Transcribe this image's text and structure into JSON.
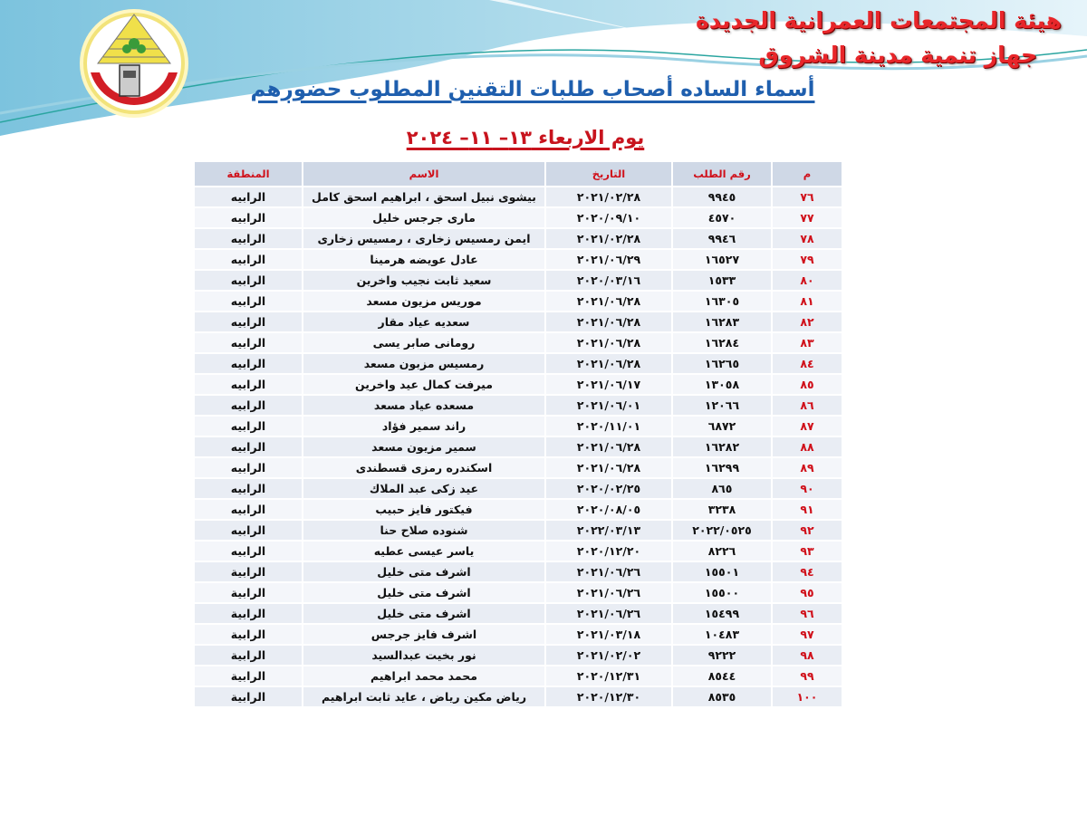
{
  "header": {
    "org_line1": "هيئة المجتمعات العمرانية الجديدة",
    "org_line2": "جهاز تنمية مدينة الشروق",
    "title": "أسماء الساده أصحاب طلبات التقنين المطلوب حضورهم",
    "subtitle": "يوم الاربعاء ١٣– ١١– ٢٠٢٤"
  },
  "colors": {
    "accent_red": "#d0101a",
    "title_blue": "#1f5fae",
    "header_row": "#cfd8e6"
  },
  "table": {
    "columns": [
      "م",
      "رقم الطلب",
      "التاريخ",
      "الاسم",
      "المنطقة"
    ],
    "rows": [
      [
        "٧٦",
        "٩٩٤٥",
        "٢٠٢١/٠٢/٢٨",
        "بيشوى نبيل اسحق ، ابراهيم اسحق كامل",
        "الرابيه"
      ],
      [
        "٧٧",
        "٤٥٧٠",
        "٢٠٢٠/٠٩/١٠",
        "مارى جرجس خليل",
        "الرابيه"
      ],
      [
        "٧٨",
        "٩٩٤٦",
        "٢٠٢١/٠٢/٢٨",
        "ايمن رمسيس زخارى ، رمسيس زخارى",
        "الرابيه"
      ],
      [
        "٧٩",
        "١٦٥٢٧",
        "٢٠٢١/٠٦/٢٩",
        "عادل عويضه هرمينا",
        "الرابيه"
      ],
      [
        "٨٠",
        "١٥٣٣",
        "٢٠٢٠/٠٣/١٦",
        "سعيد ثابت نجيب واخرين",
        "الرابيه"
      ],
      [
        "٨١",
        "١٦٣٠٥",
        "٢٠٢١/٠٦/٢٨",
        "موريس مزيون مسعد",
        "الرابيه"
      ],
      [
        "٨٢",
        "١٦٢٨٣",
        "٢٠٢١/٠٦/٢٨",
        "سعديه عياد مقار",
        "الرابيه"
      ],
      [
        "٨٣",
        "١٦٢٨٤",
        "٢٠٢١/٠٦/٢٨",
        "رومانى صابر يسى",
        "الرابيه"
      ],
      [
        "٨٤",
        "١٦٢٦٥",
        "٢٠٢١/٠٦/٢٨",
        "رمسيس مزبون مسعد",
        "الرابيه"
      ],
      [
        "٨٥",
        "١٣٠٥٨",
        "٢٠٢١/٠٦/١٧",
        "ميرفت كمال عيد واخرين",
        "الرابيه"
      ],
      [
        "٨٦",
        "١٢٠٦٦",
        "٢٠٢١/٠٦/٠١",
        "مسعده عياد مسعد",
        "الرابيه"
      ],
      [
        "٨٧",
        "٦٨٧٢",
        "٢٠٢٠/١١/٠١",
        "راند سمير فؤاد",
        "الرابيه"
      ],
      [
        "٨٨",
        "١٦٢٨٢",
        "٢٠٢١/٠٦/٢٨",
        "سمير مزيون مسعد",
        "الرابيه"
      ],
      [
        "٨٩",
        "١٦٢٩٩",
        "٢٠٢١/٠٦/٢٨",
        "اسكندره رمزى قسطندى",
        "الرابيه"
      ],
      [
        "٩٠",
        "٨٦٥",
        "٢٠٢٠/٠٢/٢٥",
        "عيد زكى عبد الملاك",
        "الرابيه"
      ],
      [
        "٩١",
        "٣٢٣٨",
        "٢٠٢٠/٠٨/٠٥",
        "فيكتور فايز حبيب",
        "الرابيه"
      ],
      [
        "٩٢",
        "٢٠٢٢/٠٥٢٥",
        "٢٠٢٢/٠٣/١٣",
        "شنوده صلاح حنا",
        "الرابيه"
      ],
      [
        "٩٣",
        "٨٢٢٦",
        "٢٠٢٠/١٢/٢٠",
        "ياسر عيسى عطيه",
        "الرابيه"
      ],
      [
        "٩٤",
        "١٥٥٠١",
        "٢٠٢١/٠٦/٢٦",
        "اشرف متى خليل",
        "الرابية"
      ],
      [
        "٩٥",
        "١٥٥٠٠",
        "٢٠٢١/٠٦/٢٦",
        "اشرف متى خليل",
        "الرابية"
      ],
      [
        "٩٦",
        "١٥٤٩٩",
        "٢٠٢١/٠٦/٢٦",
        "اشرف متى خليل",
        "الرابية"
      ],
      [
        "٩٧",
        "١٠٤٨٣",
        "٢٠٢١/٠٣/١٨",
        "اشرف فايز جرجس",
        "الرابية"
      ],
      [
        "٩٨",
        "٩٢٢٢",
        "٢٠٢١/٠٢/٠٢",
        "نور بخيت عبدالسيد",
        "الرابية"
      ],
      [
        "٩٩",
        "٨٥٤٤",
        "٢٠٢٠/١٢/٣١",
        "محمد محمد ابراهيم",
        "الرابية"
      ],
      [
        "١٠٠",
        "٨٥٣٥",
        "٢٠٢٠/١٢/٣٠",
        "رياض مكين رياض ، عايد ثابت ابراهيم",
        "الرابية"
      ]
    ]
  }
}
